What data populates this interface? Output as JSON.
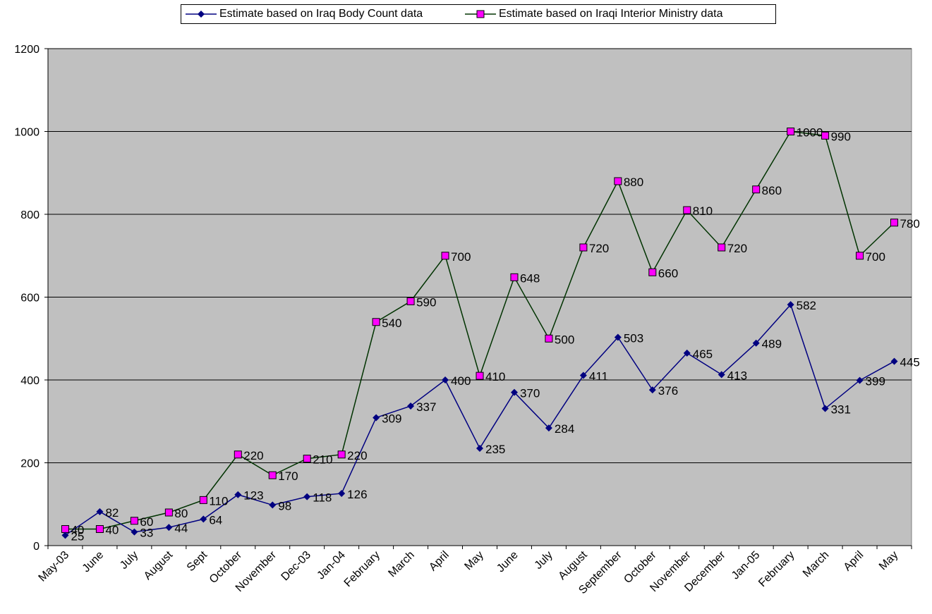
{
  "chart_data": {
    "type": "line",
    "categories": [
      "May-03",
      "June",
      "July",
      "August",
      "Sept",
      "October",
      "November",
      "Dec-03",
      "Jan-04",
      "February",
      "March",
      "April",
      "May",
      "June",
      "July",
      "August",
      "September",
      "October",
      "November",
      "December",
      "Jan-05",
      "February",
      "March",
      "April",
      "May"
    ],
    "series": [
      {
        "name": "Estimate based on Iraq Body Count data",
        "color": "#000080",
        "marker": "diamond",
        "values": [
          25,
          82,
          33,
          44,
          64,
          123,
          98,
          118,
          126,
          309,
          337,
          400,
          235,
          370,
          284,
          411,
          503,
          376,
          465,
          413,
          489,
          582,
          331,
          399,
          445
        ]
      },
      {
        "name": "Estimate based on Iraqi Interior Ministry data",
        "color": "#003300",
        "marker_fill": "#ff00ff",
        "marker": "square",
        "values": [
          40,
          40,
          60,
          80,
          110,
          220,
          170,
          210,
          220,
          540,
          590,
          700,
          410,
          648,
          500,
          720,
          880,
          660,
          810,
          720,
          860,
          1000,
          990,
          700,
          780
        ]
      }
    ],
    "yticks": [
      "0",
      "200",
      "400",
      "600",
      "800",
      "1000",
      "1200"
    ],
    "ylim": [
      0,
      1200
    ],
    "grid": true,
    "legend_position": "top-center",
    "plot_background": "#c0c0c0"
  }
}
